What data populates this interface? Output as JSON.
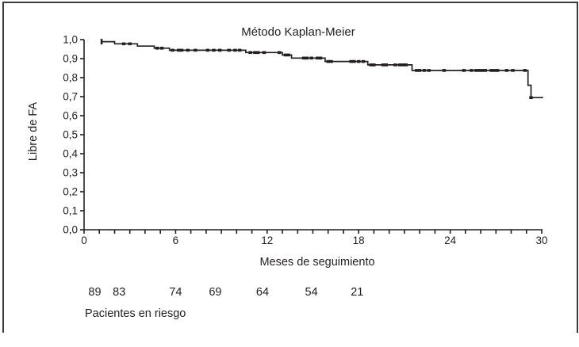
{
  "figure": {
    "at_risk_label": "Pacientes en riesgo"
  },
  "colors": {
    "line": "#231f20",
    "background": "#ffffff",
    "border": "#3b3b3b"
  },
  "chart_data": {
    "type": "line",
    "subtype": "kaplan-meier-step-curve",
    "title": "Método Kaplan-Meier",
    "xlabel": "Meses de seguimiento",
    "ylabel": "Libre de FA",
    "xlim": [
      0,
      30
    ],
    "ylim": [
      0.0,
      1.0
    ],
    "grid": false,
    "legend": "none",
    "x_major_ticks": [
      0,
      6,
      12,
      18,
      24,
      30
    ],
    "x_tick_labels": [
      "0",
      "6",
      "12",
      "18",
      "24",
      "30"
    ],
    "x_minor_tick_every": 1,
    "y_ticks": [
      0.0,
      0.1,
      0.2,
      0.3,
      0.4,
      0.5,
      0.6,
      0.7,
      0.8,
      0.9,
      1.0
    ],
    "y_tick_labels": [
      "0,0",
      "0,1",
      "0,2",
      "0,3",
      "0,4",
      "0,5",
      "0,6",
      "0,7",
      "0,8",
      "0,9",
      "1,0"
    ],
    "series": [
      {
        "name": "Libre de FA",
        "start_marker": [
          1.15,
          0.989
        ],
        "steps": [
          [
            1.1,
            0.989
          ],
          [
            2.0,
            0.978
          ],
          [
            3.5,
            0.966
          ],
          [
            4.6,
            0.955
          ],
          [
            5.6,
            0.944
          ],
          [
            10.6,
            0.932
          ],
          [
            13.0,
            0.919
          ],
          [
            13.6,
            0.903
          ],
          [
            15.8,
            0.885
          ],
          [
            18.6,
            0.867
          ],
          [
            21.5,
            0.838
          ],
          [
            29.1,
            0.76
          ],
          [
            29.3,
            0.695
          ]
        ],
        "end_t": 30.1,
        "final_value": 0.695,
        "censors": [
          [
            2.6,
            0.978
          ],
          [
            3.0,
            0.978
          ],
          [
            4.8,
            0.955
          ],
          [
            5.1,
            0.955
          ],
          [
            5.8,
            0.944
          ],
          [
            6.2,
            0.944
          ],
          [
            6.4,
            0.944
          ],
          [
            6.8,
            0.944
          ],
          [
            7.3,
            0.944
          ],
          [
            8.1,
            0.944
          ],
          [
            8.5,
            0.944
          ],
          [
            8.9,
            0.944
          ],
          [
            9.5,
            0.944
          ],
          [
            9.9,
            0.944
          ],
          [
            10.2,
            0.944
          ],
          [
            10.9,
            0.932
          ],
          [
            11.2,
            0.932
          ],
          [
            11.4,
            0.932
          ],
          [
            11.8,
            0.932
          ],
          [
            12.8,
            0.932
          ],
          [
            13.2,
            0.919
          ],
          [
            13.4,
            0.919
          ],
          [
            14.4,
            0.903
          ],
          [
            14.6,
            0.903
          ],
          [
            14.9,
            0.903
          ],
          [
            15.3,
            0.903
          ],
          [
            15.5,
            0.903
          ],
          [
            16.0,
            0.885
          ],
          [
            16.2,
            0.885
          ],
          [
            17.5,
            0.885
          ],
          [
            17.7,
            0.885
          ],
          [
            18.0,
            0.885
          ],
          [
            18.3,
            0.885
          ],
          [
            18.8,
            0.867
          ],
          [
            19.0,
            0.867
          ],
          [
            19.6,
            0.867
          ],
          [
            19.8,
            0.867
          ],
          [
            20.4,
            0.867
          ],
          [
            20.7,
            0.867
          ],
          [
            20.9,
            0.867
          ],
          [
            21.1,
            0.867
          ],
          [
            21.8,
            0.838
          ],
          [
            22.0,
            0.838
          ],
          [
            22.3,
            0.838
          ],
          [
            22.6,
            0.838
          ],
          [
            23.6,
            0.838
          ],
          [
            24.9,
            0.838
          ],
          [
            25.4,
            0.838
          ],
          [
            25.7,
            0.838
          ],
          [
            25.9,
            0.838
          ],
          [
            26.1,
            0.838
          ],
          [
            26.3,
            0.838
          ],
          [
            26.7,
            0.838
          ],
          [
            26.9,
            0.838
          ],
          [
            27.1,
            0.838
          ],
          [
            27.7,
            0.838
          ],
          [
            28.1,
            0.838
          ],
          [
            28.9,
            0.838
          ],
          [
            29.3,
            0.695
          ]
        ]
      }
    ],
    "at_risk": {
      "label": "Pacientes en riesgo",
      "values": [
        "89",
        "83",
        "74",
        "69",
        "64",
        "54",
        "21"
      ],
      "positions_t": [
        0.7,
        2.3,
        6.0,
        8.6,
        11.7,
        14.9,
        17.9
      ]
    }
  }
}
